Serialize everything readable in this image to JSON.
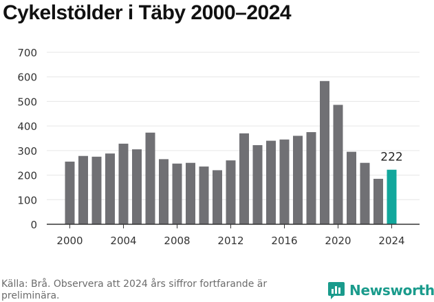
{
  "colors": {
    "bar": "#707074",
    "highlight": "#12a79c",
    "axis": "#333333",
    "grid": "#e6e6e6",
    "brand": "#1a9b8c"
  },
  "chart_data": {
    "type": "bar",
    "title": "Cykelstölder i Täby 2000–2024",
    "xlabel": "",
    "ylabel": "",
    "categories": [
      2000,
      2001,
      2002,
      2003,
      2004,
      2005,
      2006,
      2007,
      2008,
      2009,
      2010,
      2011,
      2012,
      2013,
      2014,
      2015,
      2016,
      2017,
      2018,
      2019,
      2020,
      2021,
      2022,
      2023,
      2024
    ],
    "values": [
      255,
      278,
      275,
      288,
      328,
      305,
      373,
      265,
      247,
      250,
      235,
      220,
      260,
      370,
      322,
      340,
      345,
      360,
      375,
      583,
      486,
      295,
      250,
      185,
      222
    ],
    "highlight_category": 2024,
    "highlight_label": "222",
    "yticks": [
      0,
      100,
      200,
      300,
      400,
      500,
      600,
      700
    ],
    "xticks": [
      2000,
      2004,
      2008,
      2012,
      2016,
      2020,
      2024
    ],
    "ylim": [
      0,
      700
    ],
    "grid": true,
    "legend": "none"
  },
  "footer": {
    "source": "Källa: Brå. Observera att 2024 års siffror fortfarande är preliminära.",
    "logo_text": "Newsworthy"
  }
}
